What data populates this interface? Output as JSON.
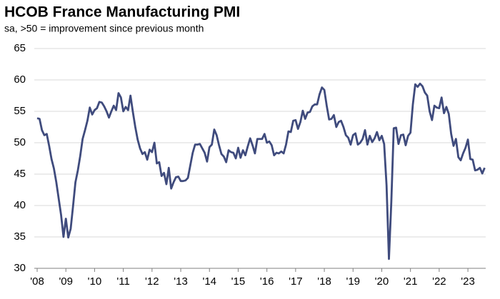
{
  "chart_data": {
    "type": "line",
    "title": "HCOB France Manufacturing PMI",
    "subtitle": "sa, >50 = improvement since previous month",
    "xlim": [
      2007.9,
      2023.62
    ],
    "xticks": [
      {
        "value": 2008,
        "label": "'08"
      },
      {
        "value": 2009,
        "label": "'09"
      },
      {
        "value": 2010,
        "label": "'10"
      },
      {
        "value": 2011,
        "label": "'11"
      },
      {
        "value": 2012,
        "label": "'12"
      },
      {
        "value": 2013,
        "label": "'13"
      },
      {
        "value": 2014,
        "label": "'14"
      },
      {
        "value": 2015,
        "label": "'15"
      },
      {
        "value": 2016,
        "label": "'16"
      },
      {
        "value": 2017,
        "label": "'17"
      },
      {
        "value": 2018,
        "label": "'18"
      },
      {
        "value": 2019,
        "label": "'19"
      },
      {
        "value": 2020,
        "label": "'20"
      },
      {
        "value": 2021,
        "label": "'21"
      },
      {
        "value": 2022,
        "label": "'22"
      },
      {
        "value": 2023,
        "label": "'23"
      }
    ],
    "ylim": [
      30,
      65
    ],
    "yticks": [
      30,
      35,
      40,
      45,
      50,
      55,
      60,
      65
    ],
    "grid": true,
    "x": [
      2008,
      2008.083,
      2008.167,
      2008.25,
      2008.333,
      2008.417,
      2008.5,
      2008.583,
      2008.667,
      2008.75,
      2008.833,
      2008.917,
      2009,
      2009.083,
      2009.167,
      2009.25,
      2009.333,
      2009.417,
      2009.5,
      2009.583,
      2009.667,
      2009.75,
      2009.833,
      2009.917,
      2010,
      2010.083,
      2010.167,
      2010.25,
      2010.333,
      2010.417,
      2010.5,
      2010.583,
      2010.667,
      2010.75,
      2010.833,
      2010.917,
      2011,
      2011.083,
      2011.167,
      2011.25,
      2011.333,
      2011.417,
      2011.5,
      2011.583,
      2011.667,
      2011.75,
      2011.833,
      2011.917,
      2012,
      2012.083,
      2012.167,
      2012.25,
      2012.333,
      2012.417,
      2012.5,
      2012.583,
      2012.667,
      2012.75,
      2012.833,
      2012.917,
      2013,
      2013.083,
      2013.167,
      2013.25,
      2013.333,
      2013.417,
      2013.5,
      2013.583,
      2013.667,
      2013.75,
      2013.833,
      2013.917,
      2014,
      2014.083,
      2014.167,
      2014.25,
      2014.333,
      2014.417,
      2014.5,
      2014.583,
      2014.667,
      2014.75,
      2014.833,
      2014.917,
      2015,
      2015.083,
      2015.167,
      2015.25,
      2015.333,
      2015.417,
      2015.5,
      2015.583,
      2015.667,
      2015.75,
      2015.833,
      2015.917,
      2016,
      2016.083,
      2016.167,
      2016.25,
      2016.333,
      2016.417,
      2016.5,
      2016.583,
      2016.667,
      2016.75,
      2016.833,
      2016.917,
      2017,
      2017.083,
      2017.167,
      2017.25,
      2017.333,
      2017.417,
      2017.5,
      2017.583,
      2017.667,
      2017.75,
      2017.833,
      2017.917,
      2018,
      2018.083,
      2018.167,
      2018.25,
      2018.333,
      2018.417,
      2018.5,
      2018.583,
      2018.667,
      2018.75,
      2018.833,
      2018.917,
      2019,
      2019.083,
      2019.167,
      2019.25,
      2019.333,
      2019.417,
      2019.5,
      2019.583,
      2019.667,
      2019.75,
      2019.833,
      2019.917,
      2020,
      2020.083,
      2020.167,
      2020.25,
      2020.333,
      2020.417,
      2020.5,
      2020.583,
      2020.667,
      2020.75,
      2020.833,
      2020.917,
      2021,
      2021.083,
      2021.167,
      2021.25,
      2021.333,
      2021.417,
      2021.5,
      2021.583,
      2021.667,
      2021.75,
      2021.833,
      2021.917,
      2022,
      2022.083,
      2022.167,
      2022.25,
      2022.333,
      2022.417,
      2022.5,
      2022.583,
      2022.667,
      2022.75,
      2022.833,
      2022.917,
      2023,
      2023.083,
      2023.167,
      2023.25,
      2023.333,
      2023.417,
      2023.5,
      2023.583
    ],
    "series": [
      {
        "name": "PMI",
        "color": "#3f4b7d",
        "values": [
          53.9,
          53.8,
          52.0,
          51.2,
          51.4,
          49.5,
          47.4,
          45.9,
          43.7,
          41.1,
          38.5,
          35.0,
          37.9,
          34.9,
          36.3,
          39.9,
          43.7,
          45.6,
          47.9,
          50.6,
          52.0,
          53.5,
          55.6,
          54.5,
          55.2,
          55.5,
          56.5,
          56.4,
          55.8,
          55.0,
          54.0,
          55.0,
          55.9,
          55.2,
          57.9,
          57.2,
          55.0,
          55.7,
          55.2,
          57.5,
          54.9,
          52.5,
          50.5,
          49.1,
          48.2,
          48.5,
          47.3,
          48.9,
          48.5,
          50.0,
          46.7,
          46.9,
          44.7,
          45.2,
          43.4,
          46.0,
          42.7,
          43.7,
          44.5,
          44.6,
          43.9,
          43.9,
          44.0,
          44.4,
          46.4,
          48.4,
          49.7,
          49.7,
          49.8,
          49.1,
          48.4,
          47.0,
          49.3,
          49.7,
          52.1,
          51.2,
          49.6,
          48.2,
          47.8,
          46.9,
          48.8,
          48.5,
          48.4,
          47.5,
          49.2,
          47.6,
          48.8,
          48.0,
          49.4,
          50.7,
          49.6,
          48.3,
          50.6,
          50.6,
          50.6,
          51.4,
          50.0,
          50.2,
          49.6,
          48.0,
          48.4,
          48.3,
          48.6,
          48.3,
          49.7,
          51.8,
          51.7,
          53.5,
          53.6,
          52.2,
          53.3,
          55.1,
          53.8,
          54.8,
          54.9,
          55.8,
          56.1,
          56.1,
          57.7,
          58.8,
          58.4,
          55.9,
          53.7,
          53.8,
          54.4,
          52.5,
          53.3,
          53.5,
          52.5,
          51.2,
          50.8,
          49.7,
          51.2,
          51.5,
          49.7,
          50.0,
          50.6,
          52.0,
          49.7,
          51.1,
          50.1,
          50.7,
          51.7,
          50.4,
          51.1,
          49.8,
          43.2,
          31.5,
          40.6,
          52.3,
          52.4,
          49.8,
          51.2,
          51.3,
          49.6,
          51.1,
          51.6,
          56.1,
          59.3,
          58.9,
          59.4,
          59.0,
          58.0,
          57.5,
          55.0,
          53.6,
          55.9,
          55.6,
          55.5,
          57.2,
          54.7,
          55.7,
          54.6,
          51.4,
          49.5,
          50.6,
          47.7,
          47.2,
          48.3,
          49.2,
          50.5,
          47.4,
          47.3,
          45.6,
          45.7,
          46.0,
          45.1,
          46.0
        ]
      }
    ]
  }
}
